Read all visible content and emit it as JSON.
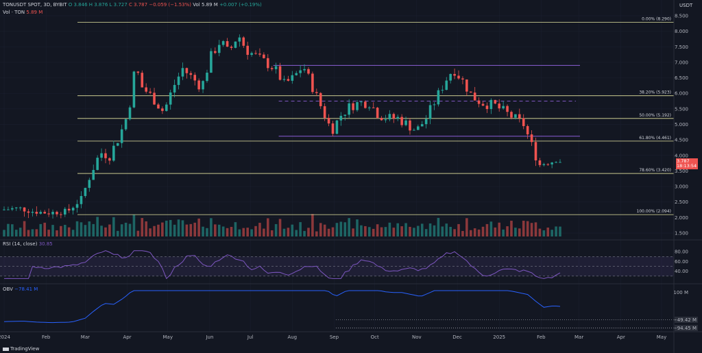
{
  "header": {
    "symbol": "TONUSDT SPOT, 3D, BYBIT",
    "o": "O 3.846",
    "h": "H 3.876",
    "l": "L 3.727",
    "c": "C 3.787",
    "chg": "−0.059 (−1.53%)",
    "vol_label": "Vol · TON",
    "vol_value": "5.89 M",
    "vol_small": "Vol 5.89 M",
    "vol_chg": "+0.007 (+0.19%)"
  },
  "currency": "USDT",
  "price_tag": {
    "value": "3.787",
    "countdown": "18:13:54"
  },
  "rsi": {
    "label": "RSI (14, close)",
    "value": "30.85",
    "ticks": [
      "80.00",
      "60.00",
      "40.00"
    ]
  },
  "obv": {
    "label": "OBV",
    "value": "−78.41 M",
    "ticks": [
      "100 M"
    ],
    "tags": [
      "−49.42 M",
      "−94.45 M"
    ]
  },
  "logo": "TradingView",
  "colors": {
    "up": "#26a69a",
    "down": "#ef5350",
    "fib": "#e6e6a0",
    "channel": "#7e57c2",
    "rsi": "#7e57c2",
    "obv": "#2962ff"
  },
  "chart_data": {
    "type": "candlestick",
    "price_ticks": [
      "8.500",
      "8.000",
      "7.500",
      "7.000",
      "6.500",
      "6.000",
      "5.500",
      "5.000",
      "4.500",
      "4.000",
      "3.500",
      "3.000",
      "2.500",
      "2.000",
      "1.500"
    ],
    "x_ticks": [
      "2024",
      "Feb",
      "Mar",
      "Apr",
      "May",
      "Jun",
      "Jul",
      "Aug",
      "Sep",
      "Oct",
      "Nov",
      "Dec",
      "2025",
      "Feb",
      "Mar",
      "Apr",
      "May"
    ],
    "fib_levels": [
      {
        "label": "0.00% (8.290)",
        "price": 8.29
      },
      {
        "label": "38.20% (5.923)",
        "price": 5.923
      },
      {
        "label": "50.00% (5.192)",
        "price": 5.192
      },
      {
        "label": "61.80% (4.461)",
        "price": 4.461
      },
      {
        "label": "78.60% (3.420)",
        "price": 3.42
      },
      {
        "label": "100.00% (2.094)",
        "price": 2.094
      }
    ],
    "channel": {
      "top": 6.9,
      "mid": 5.75,
      "bottom": 4.62
    },
    "close_path": [
      [
        "2024-01-01",
        2.25
      ],
      [
        "2024-01-15",
        2.3
      ],
      [
        "2024-01-25",
        2.2
      ],
      [
        "2024-02-05",
        2.15
      ],
      [
        "2024-02-20",
        2.2
      ],
      [
        "2024-03-01",
        2.6
      ],
      [
        "2024-03-08",
        3.4
      ],
      [
        "2024-03-15",
        4.1
      ],
      [
        "2024-03-22",
        4.0
      ],
      [
        "2024-03-29",
        4.6
      ],
      [
        "2024-04-05",
        5.4
      ],
      [
        "2024-04-10",
        6.9
      ],
      [
        "2024-04-15",
        6.2
      ],
      [
        "2024-04-22",
        5.9
      ],
      [
        "2024-05-01",
        5.4
      ],
      [
        "2024-05-08",
        6.2
      ],
      [
        "2024-05-15",
        6.8
      ],
      [
        "2024-05-22",
        6.5
      ],
      [
        "2024-05-29",
        6.2
      ],
      [
        "2024-06-05",
        7.2
      ],
      [
        "2024-06-12",
        7.7
      ],
      [
        "2024-06-18",
        7.3
      ],
      [
        "2024-06-25",
        7.9
      ],
      [
        "2024-07-01",
        7.4
      ],
      [
        "2024-07-08",
        7.2
      ],
      [
        "2024-07-15",
        7.0
      ],
      [
        "2024-07-22",
        6.8
      ],
      [
        "2024-07-29",
        6.3
      ],
      [
        "2024-08-05",
        6.5
      ],
      [
        "2024-08-12",
        6.9
      ],
      [
        "2024-08-19",
        6.2
      ],
      [
        "2024-08-26",
        5.5
      ],
      [
        "2024-09-02",
        4.8
      ],
      [
        "2024-09-09",
        5.3
      ],
      [
        "2024-09-16",
        5.6
      ],
      [
        "2024-09-23",
        5.7
      ],
      [
        "2024-09-30",
        5.7
      ],
      [
        "2024-10-07",
        5.3
      ],
      [
        "2024-10-14",
        5.2
      ],
      [
        "2024-10-21",
        5.2
      ],
      [
        "2024-10-28",
        5.0
      ],
      [
        "2024-11-04",
        4.8
      ],
      [
        "2024-11-11",
        5.2
      ],
      [
        "2024-11-18",
        5.8
      ],
      [
        "2024-11-25",
        6.4
      ],
      [
        "2024-12-01",
        6.8
      ],
      [
        "2024-12-08",
        6.4
      ],
      [
        "2024-12-15",
        5.9
      ],
      [
        "2024-12-22",
        5.7
      ],
      [
        "2025-01-01",
        5.6
      ],
      [
        "2025-01-08",
        5.4
      ],
      [
        "2025-01-15",
        5.2
      ],
      [
        "2025-01-22",
        5.0
      ],
      [
        "2025-01-29",
        4.2
      ],
      [
        "2025-02-03",
        3.7
      ],
      [
        "2025-02-10",
        3.85
      ],
      [
        "2025-02-15",
        3.79
      ]
    ]
  }
}
